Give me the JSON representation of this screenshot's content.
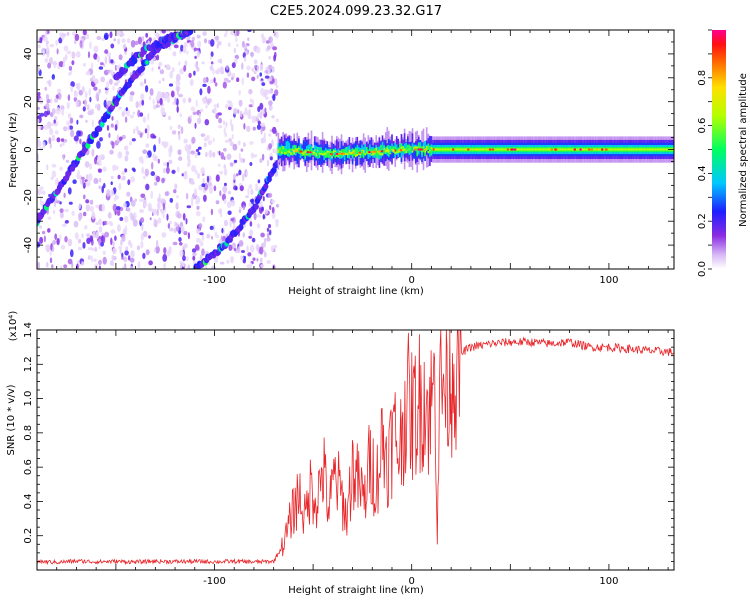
{
  "title": "C2E5.2024.099.23.32.G17",
  "colors": {
    "snr_line": "#e8262a",
    "axis": "#000000",
    "background": "#ffffff"
  },
  "chart_data": [
    {
      "type": "heatmap",
      "xlabel": "Height of straight line (km)",
      "ylabel": "Frequency (Hz)",
      "xlim": [
        -190,
        133
      ],
      "ylim": [
        -50,
        50
      ],
      "xticks": [
        -100,
        0,
        100
      ],
      "yticks": [
        -40,
        -20,
        0,
        20,
        40
      ],
      "colorbar": {
        "label": "Normalized spectral amplitude",
        "range": [
          0,
          1
        ],
        "ticks": [
          "0.0",
          "0.2",
          "0.4",
          "0.6",
          "0.8"
        ],
        "colormap": "rainbow (white → purple → blue → cyan → green → yellow → red → magenta)"
      },
      "features": [
        {
          "name": "diagonal track 1 (rising)",
          "x": [
            -190,
            -170,
            -150,
            -130,
            -112
          ],
          "y": [
            -30,
            -5,
            20,
            42,
            50
          ]
        },
        {
          "name": "diagonal track 2 (upper)",
          "x": [
            -150,
            -138,
            -125,
            -112
          ],
          "y": [
            30,
            40,
            46,
            50
          ]
        },
        {
          "name": "diagonal track 3 (lower)",
          "x": [
            -110,
            -95,
            -80,
            -68
          ],
          "y": [
            -50,
            -40,
            -25,
            -5
          ]
        },
        {
          "name": "carrier line near 0 Hz",
          "x": [
            -68,
            -40,
            0,
            50,
            133
          ],
          "y": [
            0,
            -2,
            0,
            0,
            0
          ]
        },
        {
          "name": "noise region",
          "x_range": [
            -190,
            -68
          ],
          "y_range": [
            -50,
            50
          ]
        }
      ]
    },
    {
      "type": "line",
      "xlabel": "Height of straight line (km)",
      "ylabel": "SNR (10 * v/v)",
      "y_multiplier": "(x10⁴)",
      "xlim": [
        -190,
        133
      ],
      "ylim": [
        0,
        14000
      ],
      "xticks": [
        -100,
        0,
        100
      ],
      "yticks": [
        "0.2",
        "0.4",
        "0.6",
        "0.8",
        "1.0",
        "1.2",
        "1.4"
      ],
      "series": [
        {
          "x": [
            -190,
            -180,
            -170,
            -160,
            -150,
            -140,
            -130,
            -120,
            -110,
            -100,
            -90,
            -80,
            -70,
            -65,
            -60,
            -57,
            -54,
            -51,
            -48,
            -45,
            -42,
            -39,
            -36,
            -33,
            -30,
            -27,
            -24,
            -21,
            -18,
            -15,
            -12,
            -9,
            -6,
            -3,
            0,
            3,
            6,
            9,
            12,
            13,
            14,
            15,
            18,
            21,
            24,
            27,
            30,
            35,
            40,
            50,
            60,
            70,
            80,
            90,
            95,
            100,
            110,
            120,
            133
          ],
          "y": [
            500,
            450,
            520,
            480,
            500,
            470,
            510,
            490,
            500,
            480,
            500,
            470,
            500,
            1500,
            3500,
            4500,
            3000,
            5000,
            4000,
            6000,
            3500,
            5500,
            4500,
            3000,
            6000,
            5000,
            4000,
            6500,
            5000,
            7500,
            6500,
            8000,
            7000,
            10000,
            9000,
            9500,
            10500,
            9000,
            11000,
            2000,
            11000,
            10500,
            11500,
            12000,
            12500,
            12800,
            13000,
            13100,
            13200,
            13300,
            13300,
            13200,
            13300,
            13000,
            13000,
            13000,
            12900,
            12800,
            12700
          ]
        }
      ]
    }
  ]
}
